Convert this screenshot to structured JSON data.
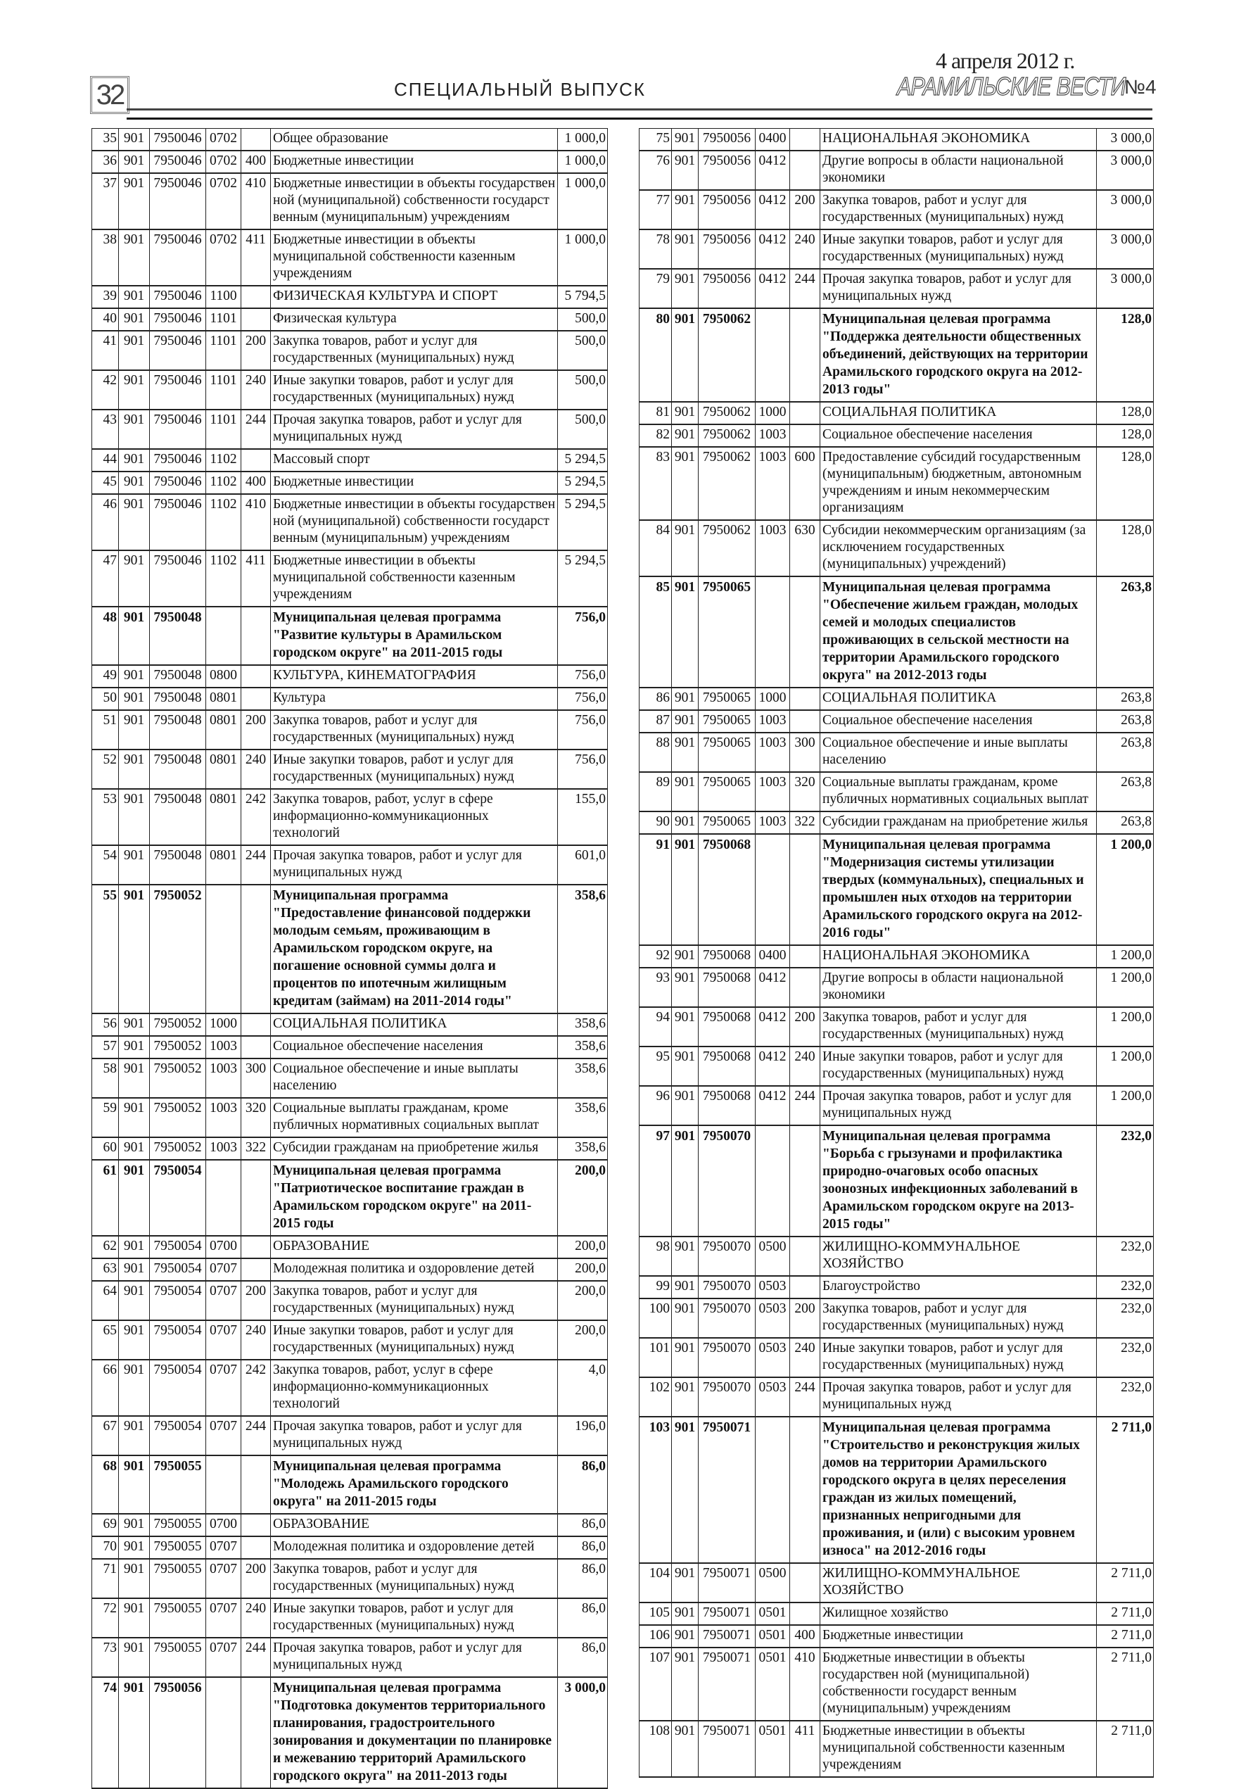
{
  "header": {
    "page_number": "32",
    "section_title": "СПЕЦИАЛЬНЫЙ ВЫПУСК",
    "date": "4 апреля 2012 г.",
    "paper_name": "АРАМИЛЬСКИЕ ВЕСТИ",
    "issue": "№4"
  },
  "tables": {
    "left": [
      [
        "35",
        "901",
        "7950046",
        "0702",
        "",
        "Общее образование",
        "1 000,0",
        ""
      ],
      [
        "36",
        "901",
        "7950046",
        "0702",
        "400",
        "Бюджетные инвестиции",
        "1 000,0",
        ""
      ],
      [
        "37",
        "901",
        "7950046",
        "0702",
        "410",
        "Бюджетные инвестиции в объекты государствен ной (муниципальной) собственности государст венным (муниципальным)  учреждениям",
        "1 000,0",
        ""
      ],
      [
        "38",
        "901",
        "7950046",
        "0702",
        "411",
        "Бюджетные инвестиции в объекты муниципальной собственности казенным учреждениям",
        "1 000,0",
        ""
      ],
      [
        "39",
        "901",
        "7950046",
        "1100",
        "",
        "ФИЗИЧЕСКАЯ КУЛЬТУРА И СПОРТ",
        "5 794,5",
        "section"
      ],
      [
        "40",
        "901",
        "7950046",
        "1101",
        "",
        "Физическая культура",
        "500,0",
        ""
      ],
      [
        "41",
        "901",
        "7950046",
        "1101",
        "200",
        "Закупка товаров, работ и услуг для государственных (муниципальных) нужд",
        "500,0",
        ""
      ],
      [
        "42",
        "901",
        "7950046",
        "1101",
        "240",
        "Иные закупки товаров, работ и услуг для государственных (муниципальных) нужд",
        "500,0",
        ""
      ],
      [
        "43",
        "901",
        "7950046",
        "1101",
        "244",
        "Прочая закупка товаров, работ и услуг для муниципальных  нужд",
        "500,0",
        ""
      ],
      [
        "44",
        "901",
        "7950046",
        "1102",
        "",
        "Массовый спорт",
        "5 294,5",
        ""
      ],
      [
        "45",
        "901",
        "7950046",
        "1102",
        "400",
        "Бюджетные инвестиции",
        "5 294,5",
        ""
      ],
      [
        "46",
        "901",
        "7950046",
        "1102",
        "410",
        "Бюджетные инвестиции в объекты государствен ной (муниципальной) собственности государст венным (муниципальным)  учреждениям",
        "5 294,5",
        ""
      ],
      [
        "47",
        "901",
        "7950046",
        "1102",
        "411",
        "Бюджетные инвестиции в объекты муниципальной собственности казенным учреждениям",
        "5 294,5",
        ""
      ],
      [
        "48",
        "901",
        "7950048",
        "",
        "",
        "Муниципальная целевая программа \"Развитие культуры в Арамильском городском округе\" на 2011-2015 годы",
        "756,0",
        "program"
      ],
      [
        "49",
        "901",
        "7950048",
        "0800",
        "",
        "КУЛЬТУРА, КИНЕМАТОГРАФИЯ",
        "756,0",
        "section"
      ],
      [
        "50",
        "901",
        "7950048",
        "0801",
        "",
        "Культура",
        "756,0",
        ""
      ],
      [
        "51",
        "901",
        "7950048",
        "0801",
        "200",
        "Закупка товаров, работ и услуг для государственных (муниципальных) нужд",
        "756,0",
        ""
      ],
      [
        "52",
        "901",
        "7950048",
        "0801",
        "240",
        "Иные закупки товаров, работ и услуг для государственных (муниципальных) нужд",
        "756,0",
        ""
      ],
      [
        "53",
        "901",
        "7950048",
        "0801",
        "242",
        "Закупка товаров, работ, услуг в сфере информационно-коммуникационных технологий",
        "155,0",
        ""
      ],
      [
        "54",
        "901",
        "7950048",
        "0801",
        "244",
        "Прочая закупка товаров, работ и услуг для муниципальных  нужд",
        "601,0",
        ""
      ],
      [
        "55",
        "901",
        "7950052",
        "",
        "",
        "Муниципальная программа \"Предоставление финансовой поддержки молодым семьям, проживающим в Арамильском городском округе, на погашение основной суммы долга и процентов по ипотечным жилищным кредитам (займам) на 2011-2014 годы\"",
        "358,6",
        "program"
      ],
      [
        "56",
        "901",
        "7950052",
        "1000",
        "",
        "СОЦИАЛЬНАЯ ПОЛИТИКА",
        "358,6",
        "section"
      ],
      [
        "57",
        "901",
        "7950052",
        "1003",
        "",
        "Социальное обеспечение населения",
        "358,6",
        ""
      ],
      [
        "58",
        "901",
        "7950052",
        "1003",
        "300",
        "Социальное обеспечение и иные выплаты населению",
        "358,6",
        ""
      ],
      [
        "59",
        "901",
        "7950052",
        "1003",
        "320",
        "Социальные выплаты гражданам, кроме публичных нормативных социальных выплат",
        "358,6",
        ""
      ],
      [
        "60",
        "901",
        "7950052",
        "1003",
        "322",
        "Субсидии гражданам на приобретение жилья",
        "358,6",
        ""
      ],
      [
        "61",
        "901",
        "7950054",
        "",
        "",
        "Муниципальная целевая программа \"Патриотическое воспитание граждан в Арамильском городском округе\" на 2011-2015 годы",
        "200,0",
        "program"
      ],
      [
        "62",
        "901",
        "7950054",
        "0700",
        "",
        "ОБРАЗОВАНИЕ",
        "200,0",
        "section"
      ],
      [
        "63",
        "901",
        "7950054",
        "0707",
        "",
        "Молодежная политика и оздоровление детей",
        "200,0",
        ""
      ],
      [
        "64",
        "901",
        "7950054",
        "0707",
        "200",
        "Закупка товаров, работ и услуг для государственных (муниципальных) нужд",
        "200,0",
        ""
      ],
      [
        "65",
        "901",
        "7950054",
        "0707",
        "240",
        "Иные закупки товаров, работ и услуг для государственных (муниципальных) нужд",
        "200,0",
        ""
      ],
      [
        "66",
        "901",
        "7950054",
        "0707",
        "242",
        "Закупка товаров, работ, услуг в сфере информационно-коммуникационных технологий",
        "4,0",
        ""
      ],
      [
        "67",
        "901",
        "7950054",
        "0707",
        "244",
        "Прочая закупка товаров, работ и услуг для муниципальных  нужд",
        "196,0",
        ""
      ],
      [
        "68",
        "901",
        "7950055",
        "",
        "",
        "Муниципальная целевая программа \"Молодежь Арамильского городского округа\" на 2011-2015 годы",
        "86,0",
        "program"
      ],
      [
        "69",
        "901",
        "7950055",
        "0700",
        "",
        "ОБРАЗОВАНИЕ",
        "86,0",
        "section"
      ],
      [
        "70",
        "901",
        "7950055",
        "0707",
        "",
        "Молодежная политика и оздоровление детей",
        "86,0",
        ""
      ],
      [
        "71",
        "901",
        "7950055",
        "0707",
        "200",
        "Закупка товаров, работ и услуг для государственных (муниципальных) нужд",
        "86,0",
        ""
      ],
      [
        "72",
        "901",
        "7950055",
        "0707",
        "240",
        "Иные закупки товаров, работ и услуг для государственных (муниципальных) нужд",
        "86,0",
        ""
      ],
      [
        "73",
        "901",
        "7950055",
        "0707",
        "244",
        "Прочая закупка товаров, работ и услуг для муниципальных  нужд",
        "86,0",
        ""
      ],
      [
        "74",
        "901",
        "7950056",
        "",
        "",
        "Муниципальная целевая программа \"Подготовка документов территориального планирования, градостроительного зонирования и документации по планировке и межеванию территорий Арамильского городского округа\" на 2011-2013 годы",
        "3 000,0",
        "program"
      ]
    ],
    "right": [
      [
        "75",
        "901",
        "7950056",
        "0400",
        "",
        "НАЦИОНАЛЬНАЯ ЭКОНОМИКА",
        "3 000,0",
        "section"
      ],
      [
        "76",
        "901",
        "7950056",
        "0412",
        "",
        "Другие вопросы в области национальной экономики",
        "3 000,0",
        ""
      ],
      [
        "77",
        "901",
        "7950056",
        "0412",
        "200",
        "Закупка товаров, работ и услуг для государственных (муниципальных) нужд",
        "3 000,0",
        ""
      ],
      [
        "78",
        "901",
        "7950056",
        "0412",
        "240",
        "Иные закупки товаров, работ и услуг для государственных (муниципальных) нужд",
        "3 000,0",
        ""
      ],
      [
        "79",
        "901",
        "7950056",
        "0412",
        "244",
        "Прочая закупка товаров, работ и услуг для муниципальных  нужд",
        "3 000,0",
        ""
      ],
      [
        "80",
        "901",
        "7950062",
        "",
        "",
        "Муниципальная целевая программа \"Поддержка деятельности общественных объединений, действующих на территории Арамильского городского округа на 2012-2013 годы\"",
        "128,0",
        "program"
      ],
      [
        "81",
        "901",
        "7950062",
        "1000",
        "",
        "СОЦИАЛЬНАЯ ПОЛИТИКА",
        "128,0",
        "section"
      ],
      [
        "82",
        "901",
        "7950062",
        "1003",
        "",
        "Социальное обеспечение населения",
        "128,0",
        ""
      ],
      [
        "83",
        "901",
        "7950062",
        "1003",
        "600",
        "Предоставление субсидий государственным (муниципальным) бюджетным, автономным учреждениям и иным некоммерческим организациям",
        "128,0",
        ""
      ],
      [
        "84",
        "901",
        "7950062",
        "1003",
        "630",
        "Субсидии некоммерческим организациям (за исключением государственных (муниципальных) учреждений)",
        "128,0",
        ""
      ],
      [
        "85",
        "901",
        "7950065",
        "",
        "",
        "Муниципальная целевая программа \"Обеспечение жильем граждан, молодых семей и молодых специалистов проживающих в сельской местности на территории Арамильского городского округа\" на 2012-2013 годы",
        "263,8",
        "program"
      ],
      [
        "86",
        "901",
        "7950065",
        "1000",
        "",
        "СОЦИАЛЬНАЯ ПОЛИТИКА",
        "263,8",
        "section"
      ],
      [
        "87",
        "901",
        "7950065",
        "1003",
        "",
        "Социальное обеспечение населения",
        "263,8",
        ""
      ],
      [
        "88",
        "901",
        "7950065",
        "1003",
        "300",
        "Социальное обеспечение и иные выплаты населению",
        "263,8",
        ""
      ],
      [
        "89",
        "901",
        "7950065",
        "1003",
        "320",
        "Социальные выплаты гражданам, кроме публичных нормативных социальных выплат",
        "263,8",
        ""
      ],
      [
        "90",
        "901",
        "7950065",
        "1003",
        "322",
        "Субсидии гражданам на приобретение жилья",
        "263,8",
        ""
      ],
      [
        "91",
        "901",
        "7950068",
        "",
        "",
        "Муниципальная целевая программа \"Модернизация системы утилизации твердых (коммунальных), специальных и промышлен ных отходов на территории Арамильского городского округа на 2012-2016 годы\"",
        "1 200,0",
        "program"
      ],
      [
        "92",
        "901",
        "7950068",
        "0400",
        "",
        "НАЦИОНАЛЬНАЯ ЭКОНОМИКА",
        "1 200,0",
        "section"
      ],
      [
        "93",
        "901",
        "7950068",
        "0412",
        "",
        "Другие вопросы в области национальной экономики",
        "1 200,0",
        ""
      ],
      [
        "94",
        "901",
        "7950068",
        "0412",
        "200",
        "Закупка товаров, работ и услуг для государственных (муниципальных) нужд",
        "1 200,0",
        ""
      ],
      [
        "95",
        "901",
        "7950068",
        "0412",
        "240",
        "Иные закупки товаров, работ и услуг для государственных (муниципальных) нужд",
        "1 200,0",
        ""
      ],
      [
        "96",
        "901",
        "7950068",
        "0412",
        "244",
        "Прочая закупка товаров, работ и услуг для муниципальных  нужд",
        "1 200,0",
        ""
      ],
      [
        "97",
        "901",
        "7950070",
        "",
        "",
        "Муниципальная целевая программа \"Борьба с грызунами и профилактика природно-очаговых особо опасных зоонозных инфекционных заболеваний в Арамильском городском округе на 2013-2015 годы\"",
        "232,0",
        "program"
      ],
      [
        "98",
        "901",
        "7950070",
        "0500",
        "",
        "ЖИЛИЩНО-КОММУНАЛЬНОЕ ХОЗЯЙСТВО",
        "232,0",
        "section"
      ],
      [
        "99",
        "901",
        "7950070",
        "0503",
        "",
        "Благоустройство",
        "232,0",
        ""
      ],
      [
        "100",
        "901",
        "7950070",
        "0503",
        "200",
        "Закупка товаров, работ и услуг для государственных (муниципальных) нужд",
        "232,0",
        ""
      ],
      [
        "101",
        "901",
        "7950070",
        "0503",
        "240",
        "Иные закупки товаров, работ и услуг для государственных (муниципальных) нужд",
        "232,0",
        ""
      ],
      [
        "102",
        "901",
        "7950070",
        "0503",
        "244",
        "Прочая закупка товаров, работ и услуг для муниципальных  нужд",
        "232,0",
        ""
      ],
      [
        "103",
        "901",
        "7950071",
        "",
        "",
        "Муниципальная целевая программа \"Строительство и реконструкция жилых домов на территории Арамильского городского округа в целях переселения граждан из жилых помещений, признанных непригодными для проживания, и (или) с высоким уровнем износа\" на 2012-2016 годы",
        "2 711,0",
        "program"
      ],
      [
        "104",
        "901",
        "7950071",
        "0500",
        "",
        "ЖИЛИЩНО-КОММУНАЛЬНОЕ ХОЗЯЙСТВО",
        "2 711,0",
        "section"
      ],
      [
        "105",
        "901",
        "7950071",
        "0501",
        "",
        "Жилищное хозяйство",
        "2 711,0",
        ""
      ],
      [
        "106",
        "901",
        "7950071",
        "0501",
        "400",
        "Бюджетные инвестиции",
        "2 711,0",
        ""
      ],
      [
        "107",
        "901",
        "7950071",
        "0501",
        "410",
        "Бюджетные инвестиции в объекты государствен ной (муниципальной) собственности государст венным (муниципальным)  учреждениям",
        "2 711,0",
        ""
      ],
      [
        "108",
        "901",
        "7950071",
        "0501",
        "411",
        "Бюджетные инвестиции в объекты муниципальной собственности казенным учреждениям",
        "2 711,0",
        ""
      ]
    ]
  }
}
